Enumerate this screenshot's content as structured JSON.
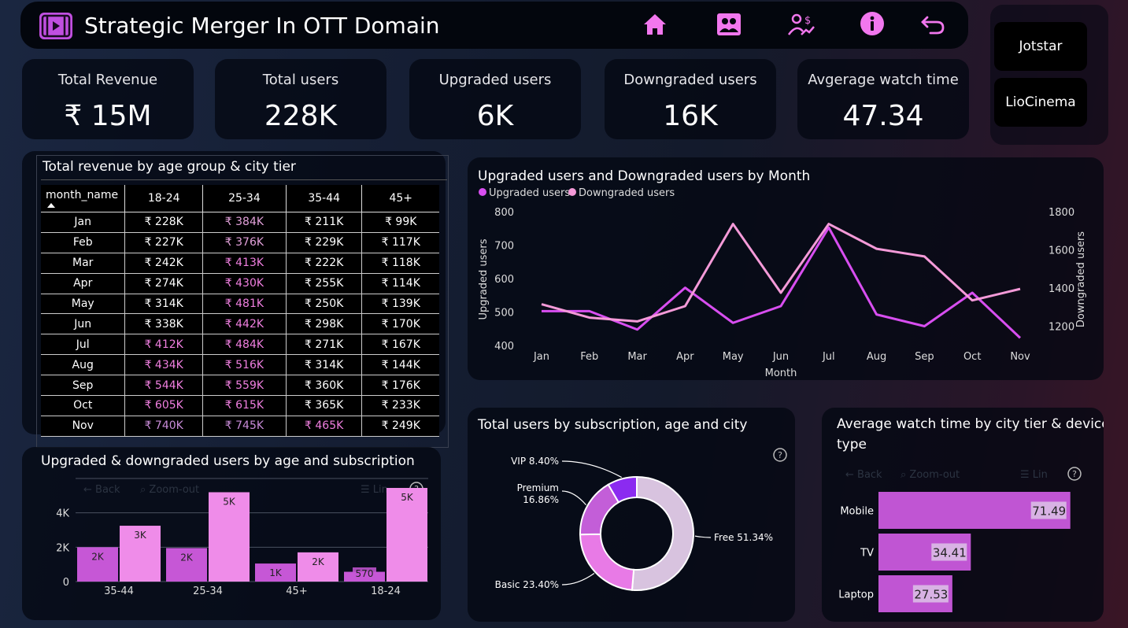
{
  "header": {
    "title": "Strategic Merger In OTT Domain",
    "nav_icons": [
      "home-icon",
      "users-icon",
      "user-revenue-icon",
      "info-icon",
      "back-icon"
    ]
  },
  "slicers": [
    {
      "label": "Jotstar"
    },
    {
      "label": "LioCinema"
    }
  ],
  "kpis": [
    {
      "label": "Total Revenue",
      "value": "₹ 15M"
    },
    {
      "label": "Total users",
      "value": "228K"
    },
    {
      "label": "Upgraded users",
      "value": "6K"
    },
    {
      "label": "Downgraded users",
      "value": "16K"
    },
    {
      "label": "Avgerage watch time",
      "value": "47.34"
    }
  ],
  "revenue_matrix": {
    "title": "Total revenue by age group & city tier",
    "columns": [
      "month_name",
      "18-24",
      "25-34",
      "35-44",
      "45+"
    ],
    "rows": [
      [
        "Jan",
        "₹ 228K",
        "₹ 384K",
        "₹ 211K",
        "₹ 99K"
      ],
      [
        "Feb",
        "₹ 227K",
        "₹ 376K",
        "₹ 229K",
        "₹ 117K"
      ],
      [
        "Mar",
        "₹ 242K",
        "₹ 413K",
        "₹ 222K",
        "₹ 118K"
      ],
      [
        "Apr",
        "₹ 274K",
        "₹ 430K",
        "₹ 255K",
        "₹ 114K"
      ],
      [
        "May",
        "₹ 314K",
        "₹ 481K",
        "₹ 250K",
        "₹ 139K"
      ],
      [
        "Jun",
        "₹ 338K",
        "₹ 442K",
        "₹ 298K",
        "₹ 170K"
      ],
      [
        "Jul",
        "₹ 412K",
        "₹ 484K",
        "₹ 271K",
        "₹ 167K"
      ],
      [
        "Aug",
        "₹ 434K",
        "₹ 516K",
        "₹ 314K",
        "₹ 144K"
      ],
      [
        "Sep",
        "₹ 544K",
        "₹ 559K",
        "₹ 360K",
        "₹ 176K"
      ],
      [
        "Oct",
        "₹ 605K",
        "₹ 615K",
        "₹ 365K",
        "₹ 233K"
      ],
      [
        "Nov",
        "₹ 740K",
        "₹ 745K",
        "₹ 465K",
        "₹ 249K"
      ]
    ],
    "colors": {
      "high": "#f07fe0",
      "mid": "#e1a0d9",
      "low": "#ffffff",
      "max": "#c88bd8"
    }
  },
  "chart_data": [
    {
      "type": "line",
      "title": "Upgraded users and Downgraded users by Month",
      "xlabel": "Month",
      "ylabel": "Upgraded users",
      "y2label": "Downgraded users",
      "categories": [
        "Jan",
        "Feb",
        "Mar",
        "Apr",
        "May",
        "Jun",
        "Jul",
        "Aug",
        "Sep",
        "Oct",
        "Nov"
      ],
      "ylim": [
        400,
        800
      ],
      "y2lim": [
        1100,
        1800
      ],
      "yticks": [
        400,
        500,
        600,
        700,
        800
      ],
      "y2ticks": [
        1200,
        1400,
        1600,
        1800
      ],
      "series": [
        {
          "name": "Upgraded users",
          "axis": "left",
          "color": "#d84ef0",
          "values": [
            505,
            505,
            450,
            575,
            470,
            520,
            755,
            495,
            460,
            560,
            425
          ]
        },
        {
          "name": "Downgraded users",
          "axis": "right",
          "color": "#f49ad8",
          "values": [
            1320,
            1250,
            1230,
            1310,
            1740,
            1380,
            1740,
            1610,
            1570,
            1340,
            1400
          ]
        }
      ],
      "legend": "top-left"
    },
    {
      "type": "bar",
      "title": "Upgraded & downgraded users by age and subscription",
      "categories": [
        "35-44",
        "25-34",
        "45+",
        "18-24"
      ],
      "ylim": [
        0,
        6000
      ],
      "yticks": [
        0,
        2000,
        4000
      ],
      "ytick_labels": [
        "0",
        "2K",
        "4K"
      ],
      "series": [
        {
          "name": "Upgraded users",
          "color": "#c657d6",
          "values": [
            2000,
            1950,
            1050,
            570
          ],
          "labels": [
            "2K",
            "2K",
            "1K",
            "570"
          ]
        },
        {
          "name": "Downgraded users",
          "color": "#ef8ce9",
          "values": [
            3250,
            5200,
            1700,
            5450
          ],
          "labels": [
            "3K",
            "5K",
            "2K",
            "5K"
          ]
        }
      ]
    },
    {
      "type": "pie",
      "title": "Total users by subscription, age and city",
      "labels": [
        "Free",
        "Basic",
        "Premium",
        "VIP"
      ],
      "values": [
        51.34,
        23.4,
        16.86,
        8.4
      ],
      "value_labels": [
        "Free 51.34%",
        "Basic 23.40%",
        "Premium 16.86%",
        "VIP 8.40%"
      ],
      "colors": [
        "#d8c3df",
        "#e87ae6",
        "#c35ed8",
        "#8b2bf0"
      ]
    },
    {
      "type": "bar",
      "orientation": "horizontal",
      "title": "Average watch time by city tier & device type",
      "categories": [
        "Mobile",
        "TV",
        "Laptop"
      ],
      "values": [
        71.49,
        34.41,
        27.53
      ],
      "value_labels": [
        "71.49",
        "34.41",
        "27.53"
      ],
      "xlim": [
        0,
        88
      ],
      "color": "#c055d3"
    }
  ]
}
